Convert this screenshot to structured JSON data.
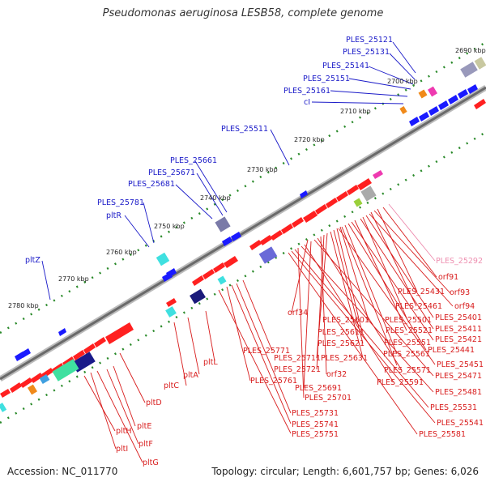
{
  "title": "Pseudomonas aeruginosa LESB58, complete genome",
  "footer": {
    "accession": "Accession: NC_011770",
    "topology": "Topology: circular; Length: 6,601,757 bp; Genes: 6,026"
  },
  "colors": {
    "forward_label": "#1a1ac8",
    "reverse_label": "#d81c1c",
    "rna_label": "#ee8fb0",
    "backbone": "#888888",
    "tick": "#2a8a2a"
  },
  "ticks": [
    "2690 kbp",
    "2700 kbp",
    "2710 kbp",
    "2720 kbp",
    "2730 kbp",
    "2740 kbp",
    "2750 kbp",
    "2760 kbp",
    "2770 kbp",
    "2780 kbp"
  ],
  "labels_forward": [
    "PLES_25121",
    "PLES_25131",
    "PLES_25141",
    "PLES_25151",
    "PLES_25161",
    "cI",
    "PLES_25511",
    "PLES_25661",
    "PLES_25671",
    "PLES_25681",
    "PLES_25781",
    "pltR",
    "pltZ"
  ],
  "labels_reverse": [
    "orf91",
    "PLES_25431",
    "orf93",
    "PLES_25461",
    "orf94",
    "PLES_25401",
    "PLES_25501",
    "PLES_25411",
    "PLES_25601",
    "PLES_25521",
    "PLES_25421",
    "orf34",
    "PLES_25611",
    "PLES_25441",
    "PLES_25621",
    "PLES_25551",
    "PLES_25631",
    "PLES_25561",
    "PLES_25451",
    "PLES_25771",
    "PLES_25711",
    "PLES_25721",
    "orf32",
    "PLES_25571",
    "PLES_25471",
    "PLES_25691",
    "PLES_25761",
    "PLES_25591",
    "PLES_25481",
    "PLES_25701",
    "PLES_25531",
    "pltL",
    "pltA",
    "pltC",
    "PLES_25731",
    "PLES_25541",
    "PLES_25741",
    "PLES_25751",
    "PLES_25581",
    "pltD",
    "pltE",
    "pltH",
    "pltF",
    "pltI",
    "pltG"
  ],
  "labels_rna": [
    "PLES_25292"
  ]
}
